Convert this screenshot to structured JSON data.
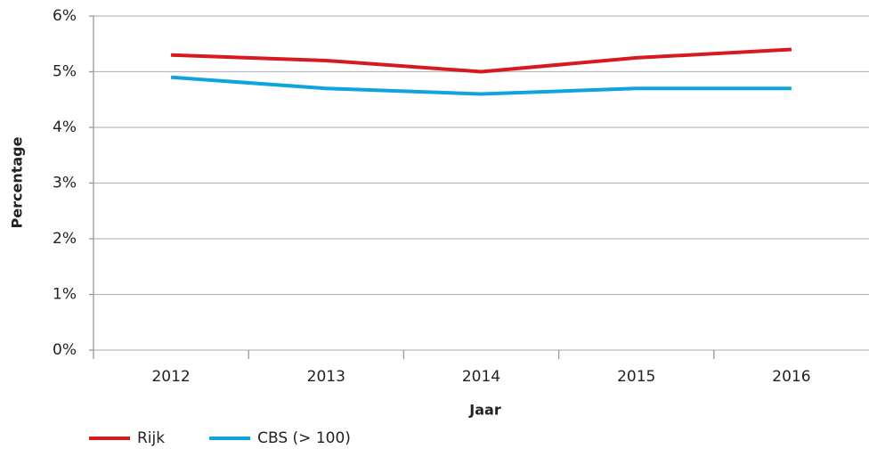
{
  "chart_data": {
    "type": "line",
    "xlabel": "Jaar",
    "ylabel": "Percentage",
    "categories": [
      "2012",
      "2013",
      "2014",
      "2015",
      "2016"
    ],
    "series": [
      {
        "name": "Rijk",
        "color": "#d71920",
        "values": [
          5.3,
          5.2,
          5.0,
          5.25,
          5.4
        ]
      },
      {
        "name": "CBS (> 100)",
        "color": "#0ea5de",
        "values": [
          4.9,
          4.7,
          4.6,
          4.7,
          4.7
        ]
      }
    ],
    "ylim": [
      0,
      6
    ],
    "yticks": [
      {
        "value": 0,
        "label": "0%"
      },
      {
        "value": 1,
        "label": "1%"
      },
      {
        "value": 2,
        "label": "2%"
      },
      {
        "value": 3,
        "label": "3%"
      },
      {
        "value": 4,
        "label": "4%"
      },
      {
        "value": 5,
        "label": "5%"
      },
      {
        "value": 6,
        "label": "6%"
      }
    ],
    "grid": true,
    "legend": "bottom-left"
  }
}
